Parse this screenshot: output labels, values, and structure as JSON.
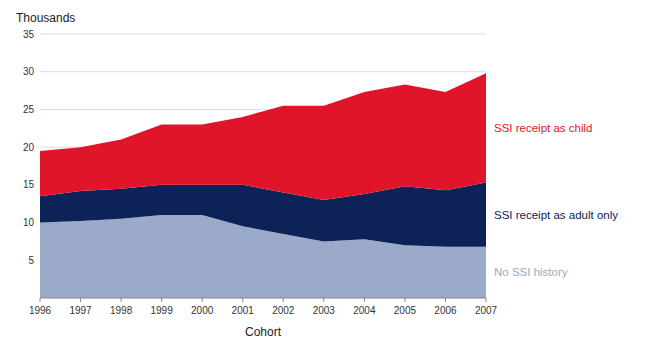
{
  "chart_data": {
    "type": "area",
    "stacked": true,
    "xlabel": "Cohort",
    "ylabel": "Thousands",
    "x": [
      1996,
      1997,
      1998,
      1999,
      2000,
      2001,
      2002,
      2003,
      2004,
      2005,
      2006,
      2007
    ],
    "series": [
      {
        "name": "No SSI history",
        "color": "#9aaac8",
        "values": [
          10.0,
          10.2,
          10.5,
          11.0,
          11.0,
          9.5,
          8.5,
          7.5,
          7.8,
          7.0,
          6.8,
          6.8
        ]
      },
      {
        "name": "SSI receipt as adult only",
        "color": "#0d2257",
        "values": [
          3.5,
          4.0,
          4.0,
          4.0,
          4.0,
          5.5,
          5.5,
          5.5,
          6.0,
          7.8,
          7.5,
          8.5
        ]
      },
      {
        "name": "SSI receipt as child",
        "color": "#e0152a",
        "values": [
          6.0,
          5.8,
          6.5,
          8.0,
          8.0,
          9.0,
          11.5,
          12.5,
          13.5,
          13.5,
          13.0,
          14.5
        ]
      }
    ],
    "xlim": [
      1996,
      2007
    ],
    "xticks": [
      1996,
      1997,
      1998,
      1999,
      2000,
      2001,
      2002,
      2003,
      2004,
      2005,
      2006,
      2007
    ],
    "ylim": [
      0,
      35
    ],
    "yticks": [
      5,
      10,
      15,
      20,
      25,
      30,
      35
    ],
    "grid": true
  }
}
